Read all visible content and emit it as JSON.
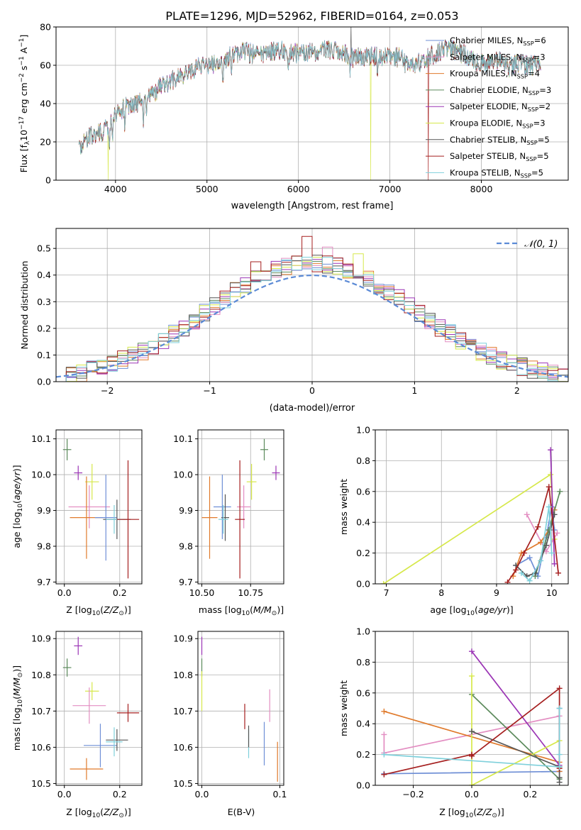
{
  "figure_title": "PLATE=1296, MJD=52962, FIBERID=0164, z=0.053",
  "colors": {
    "chabrier_miles": "#6f8fd6",
    "salpeter_miles": "#e38ec2",
    "kroupa_miles": "#e07a2c",
    "chabrier_elodie": "#5c8a5c",
    "salpeter_elodie": "#9b35b5",
    "kroupa_elodie": "#d6e84a",
    "chabrier_stelib": "#555555",
    "salpeter_stelib": "#a51f1f",
    "kroupa_stelib": "#7fd0db",
    "normal_curve": "#5b8ad6",
    "grid": "#b0b0b0"
  },
  "legend_entries": [
    {
      "label": "Chabrier MILES, N",
      "sub": "SSP",
      "tail": "=6",
      "color": "#6f8fd6"
    },
    {
      "label": "Salpeter MILES, N",
      "sub": "SSP",
      "tail": "=3",
      "color": "#e38ec2"
    },
    {
      "label": "Kroupa MILES, N",
      "sub": "SSP",
      "tail": "=4",
      "color": "#e07a2c"
    },
    {
      "label": "Chabrier ELODIE, N",
      "sub": "SSP",
      "tail": "=3",
      "color": "#5c8a5c"
    },
    {
      "label": "Salpeter ELODIE, N",
      "sub": "SSP",
      "tail": "=2",
      "color": "#9b35b5"
    },
    {
      "label": "Kroupa ELODIE, N",
      "sub": "SSP",
      "tail": "=3",
      "color": "#d6e84a"
    },
    {
      "label": "Chabrier STELIB, N",
      "sub": "SSP",
      "tail": "=5",
      "color": "#555555"
    },
    {
      "label": "Salpeter STELIB, N",
      "sub": "SSP",
      "tail": "=5",
      "color": "#a51f1f"
    },
    {
      "label": "Kroupa STELIB, N",
      "sub": "SSP",
      "tail": "=5",
      "color": "#7fd0db"
    }
  ],
  "chart_data": [
    {
      "id": "spectrum",
      "type": "line",
      "xlabel": "wavelength [Angstrom, rest frame]",
      "ylabel": "Flux [fλ10⁻¹⁷ erg cm⁻² s⁻¹ A⁻¹]",
      "xlim": [
        3350,
        8950
      ],
      "ylim": [
        0,
        80
      ],
      "xticks": [
        4000,
        5000,
        6000,
        7000,
        8000
      ],
      "yticks": [
        0,
        20,
        40,
        60,
        80
      ],
      "x_range_data": [
        3600,
        8650
      ],
      "continuum": [
        [
          3600,
          18
        ],
        [
          3700,
          22
        ],
        [
          3800,
          24
        ],
        [
          3900,
          27
        ],
        [
          4000,
          34
        ],
        [
          4100,
          38
        ],
        [
          4200,
          40
        ],
        [
          4300,
          41
        ],
        [
          4400,
          45
        ],
        [
          4500,
          49
        ],
        [
          4600,
          52
        ],
        [
          4700,
          54
        ],
        [
          4800,
          57
        ],
        [
          4900,
          59
        ],
        [
          5000,
          61
        ],
        [
          5100,
          60
        ],
        [
          5200,
          63
        ],
        [
          5300,
          66
        ],
        [
          5400,
          67
        ],
        [
          5500,
          66
        ],
        [
          5600,
          65
        ],
        [
          5700,
          67
        ],
        [
          5800,
          68
        ],
        [
          5900,
          67
        ],
        [
          6000,
          66
        ],
        [
          6100,
          67
        ],
        [
          6200,
          67
        ],
        [
          6300,
          68
        ],
        [
          6400,
          67
        ],
        [
          6500,
          66
        ],
        [
          6600,
          64
        ],
        [
          6700,
          64
        ],
        [
          6800,
          65
        ],
        [
          6900,
          64
        ],
        [
          7000,
          65
        ],
        [
          7100,
          64
        ],
        [
          7200,
          60
        ],
        [
          7300,
          61
        ],
        [
          7400,
          64
        ],
        [
          7500,
          66
        ],
        [
          7600,
          68
        ],
        [
          7700,
          68
        ],
        [
          7800,
          66
        ],
        [
          7900,
          63
        ],
        [
          8000,
          61
        ],
        [
          8100,
          61
        ],
        [
          8200,
          62
        ],
        [
          8300,
          59
        ],
        [
          8400,
          61
        ],
        [
          8500,
          60
        ],
        [
          8650,
          60
        ]
      ],
      "glitches": [
        {
          "x": 3920,
          "y": 0,
          "series": "kroupa_elodie"
        },
        {
          "x": 6790,
          "y": 0,
          "series": "kroupa_elodie"
        },
        {
          "x": 7420,
          "y": 0,
          "series": "salpeter_stelib"
        },
        {
          "x": 6575,
          "y": 82,
          "series": "chabrier_stelib"
        }
      ]
    },
    {
      "id": "residuals",
      "type": "step-histogram",
      "xlabel": "(data-model)/error",
      "ylabel": "Normed distribution",
      "xlim": [
        -2.5,
        2.5
      ],
      "ylim": [
        0,
        0.575
      ],
      "xticks": [
        -2,
        -1,
        0,
        1,
        2
      ],
      "xtick_labels": [
        "−2",
        "−1",
        "0",
        "1",
        "2"
      ],
      "yticks": [
        0,
        0.1,
        0.2,
        0.3,
        0.4,
        0.5
      ],
      "ytick_labels": [
        "0.0",
        "0.1",
        "0.2",
        "0.3",
        "0.4",
        "0.5"
      ],
      "bin_width": 0.1,
      "legend_label": "𝒩(0, 1)",
      "curve": "normal(0,1)",
      "spikes": [
        {
          "x": -0.05,
          "y": 0.545,
          "series": "salpeter_stelib"
        },
        {
          "x": 0.45,
          "y": 0.48,
          "series": "kroupa_elodie"
        },
        {
          "x": -0.55,
          "y": 0.45,
          "series": "salpeter_stelib"
        },
        {
          "x": 0.15,
          "y": 0.505,
          "series": "salpeter_miles"
        }
      ]
    },
    {
      "id": "age_vs_Z",
      "type": "errorbar",
      "xlabel": "Z [log₁₀(Z/Z⊙)]",
      "ylabel": "age  [log₁₀(age/yr)]",
      "xlim": [
        -0.03,
        0.28
      ],
      "ylim": [
        9.695,
        10.125
      ],
      "xticks": [
        0.0,
        0.2
      ],
      "xtick_labels": [
        "0.0",
        "0.2"
      ],
      "yticks": [
        9.7,
        9.8,
        9.9,
        10.0,
        10.1
      ],
      "ytick_labels": [
        "9.7",
        "9.8",
        "9.9",
        "10.0",
        "10.1"
      ],
      "points": [
        {
          "series": "chabrier_elodie",
          "x": 0.01,
          "xerr": 0.015,
          "y": 10.07,
          "yerr": 0.03
        },
        {
          "series": "salpeter_elodie",
          "x": 0.05,
          "xerr": 0.015,
          "y": 10.005,
          "yerr": 0.02
        },
        {
          "series": "kroupa_elodie",
          "x": 0.1,
          "xerr": 0.025,
          "y": 9.98,
          "yerr": 0.05
        },
        {
          "series": "salpeter_miles",
          "x": 0.09,
          "xerr": 0.075,
          "y": 9.91,
          "yerr": 0.06
        },
        {
          "series": "kroupa_miles",
          "x": 0.08,
          "xerr": 0.06,
          "y": 9.88,
          "yerr": 0.115
        },
        {
          "series": "chabrier_miles",
          "x": 0.15,
          "xerr": 0.04,
          "y": 9.88,
          "yerr": 0.12
        },
        {
          "series": "chabrier_stelib",
          "x": 0.19,
          "xerr": 0.05,
          "y": 9.875,
          "yerr": 0.055
        },
        {
          "series": "kroupa_stelib",
          "x": 0.18,
          "xerr": 0.03,
          "y": 9.875,
          "yerr": 0.04
        },
        {
          "series": "salpeter_stelib",
          "x": 0.23,
          "xerr": 0.04,
          "y": 9.875,
          "yerr": 0.165
        }
      ]
    },
    {
      "id": "age_vs_mass",
      "type": "errorbar",
      "xlabel": "mass [log₁₀(M/M⊙)]",
      "xlim": [
        10.48,
        10.92
      ],
      "ylim": [
        9.695,
        10.125
      ],
      "xticks": [
        10.5,
        10.75
      ],
      "xtick_labels": [
        "10.50",
        "10.75"
      ],
      "yticks": [
        9.7,
        9.8,
        9.9,
        10.0,
        10.1
      ],
      "ytick_labels": [
        "9.7",
        "9.8",
        "9.9",
        "10.0",
        "10.1"
      ],
      "points": [
        {
          "series": "chabrier_elodie",
          "x": 10.82,
          "xerr": 0.02,
          "y": 10.07,
          "yerr": 0.03
        },
        {
          "series": "salpeter_elodie",
          "x": 10.88,
          "xerr": 0.02,
          "y": 10.005,
          "yerr": 0.02
        },
        {
          "series": "kroupa_elodie",
          "x": 10.755,
          "xerr": 0.025,
          "y": 9.98,
          "yerr": 0.05
        },
        {
          "series": "salpeter_miles",
          "x": 10.715,
          "xerr": 0.035,
          "y": 9.91,
          "yerr": 0.06
        },
        {
          "series": "chabrier_miles",
          "x": 10.605,
          "xerr": 0.045,
          "y": 9.91,
          "yerr": 0.09
        },
        {
          "series": "kroupa_miles",
          "x": 10.54,
          "xerr": 0.04,
          "y": 9.88,
          "yerr": 0.115
        },
        {
          "series": "chabrier_stelib",
          "x": 10.62,
          "xerr": 0.02,
          "y": 9.88,
          "yerr": 0.065
        },
        {
          "series": "kroupa_stelib",
          "x": 10.61,
          "xerr": 0.025,
          "y": 9.875,
          "yerr": 0.04
        },
        {
          "series": "salpeter_stelib",
          "x": 10.695,
          "xerr": 0.025,
          "y": 9.875,
          "yerr": 0.165
        }
      ]
    },
    {
      "id": "mass_weight_vs_age",
      "type": "line",
      "xlabel": "age  [log₁₀(age/yr)]",
      "ylabel": "mass weight",
      "xlim": [
        6.8,
        10.3
      ],
      "ylim": [
        0,
        1.0
      ],
      "xticks": [
        7,
        8,
        9,
        10
      ],
      "yticks": [
        0,
        0.2,
        0.4,
        0.6,
        0.8,
        1.0
      ],
      "ytick_labels": [
        "0.0",
        "0.2",
        "0.4",
        "0.6",
        "0.8",
        "1.0"
      ],
      "series": [
        {
          "series": "kroupa_elodie",
          "x": [
            6.95,
            9.98,
            10.05
          ],
          "y": [
            0.0,
            0.71,
            0.29
          ]
        },
        {
          "series": "chabrier_miles",
          "x": [
            9.35,
            9.6,
            9.75,
            9.9,
            10.0,
            10.05
          ],
          "y": [
            0.12,
            0.17,
            0.05,
            0.3,
            0.5,
            0.35
          ]
        },
        {
          "series": "salpeter_miles",
          "x": [
            9.55,
            9.9,
            10.1
          ],
          "y": [
            0.45,
            0.21,
            0.33
          ]
        },
        {
          "series": "kroupa_miles",
          "x": [
            9.3,
            9.45,
            9.8,
            9.95,
            10.05
          ],
          "y": [
            0.05,
            0.2,
            0.27,
            0.35,
            0.48
          ]
        },
        {
          "series": "chabrier_elodie",
          "x": [
            9.7,
            9.95,
            10.15
          ],
          "y": [
            0.05,
            0.35,
            0.6
          ]
        },
        {
          "series": "salpeter_elodie",
          "x": [
            9.98,
            10.05
          ],
          "y": [
            0.87,
            0.13
          ]
        },
        {
          "series": "chabrier_stelib",
          "x": [
            9.35,
            9.55,
            9.7,
            9.9,
            10.05
          ],
          "y": [
            0.12,
            0.05,
            0.07,
            0.25,
            0.45
          ]
        },
        {
          "series": "salpeter_stelib",
          "x": [
            9.2,
            9.35,
            9.5,
            9.75,
            9.95,
            10.12
          ],
          "y": [
            0.01,
            0.09,
            0.2,
            0.37,
            0.63,
            0.07
          ]
        },
        {
          "series": "kroupa_stelib",
          "x": [
            9.45,
            9.6,
            9.8,
            9.95,
            10.0
          ],
          "y": [
            0.07,
            0.02,
            0.15,
            0.5,
            0.2
          ]
        }
      ]
    },
    {
      "id": "mass_vs_Z",
      "type": "errorbar",
      "xlabel": "Z [log₁₀(Z/Z⊙)]",
      "ylabel": "mass [log₁₀(M/M⊙)]",
      "xlim": [
        -0.03,
        0.28
      ],
      "ylim": [
        10.495,
        10.92
      ],
      "xticks": [
        0.0,
        0.2
      ],
      "xtick_labels": [
        "0.0",
        "0.2"
      ],
      "yticks": [
        10.5,
        10.6,
        10.7,
        10.8,
        10.9
      ],
      "ytick_labels": [
        "10.5",
        "10.6",
        "10.7",
        "10.8",
        "10.9"
      ],
      "points": [
        {
          "series": "chabrier_elodie",
          "x": 0.01,
          "xerr": 0.015,
          "y": 10.82,
          "yerr": 0.025
        },
        {
          "series": "salpeter_elodie",
          "x": 0.05,
          "xerr": 0.015,
          "y": 10.88,
          "yerr": 0.025
        },
        {
          "series": "kroupa_elodie",
          "x": 0.1,
          "xerr": 0.025,
          "y": 10.755,
          "yerr": 0.025
        },
        {
          "series": "salpeter_miles",
          "x": 0.09,
          "xerr": 0.06,
          "y": 10.715,
          "yerr": 0.05
        },
        {
          "series": "chabrier_miles",
          "x": 0.13,
          "xerr": 0.06,
          "y": 10.605,
          "yerr": 0.06
        },
        {
          "series": "kroupa_miles",
          "x": 0.08,
          "xerr": 0.06,
          "y": 10.54,
          "yerr": 0.03
        },
        {
          "series": "chabrier_stelib",
          "x": 0.19,
          "xerr": 0.04,
          "y": 10.62,
          "yerr": 0.03
        },
        {
          "series": "kroupa_stelib",
          "x": 0.18,
          "xerr": 0.03,
          "y": 10.615,
          "yerr": 0.04
        },
        {
          "series": "salpeter_stelib",
          "x": 0.23,
          "xerr": 0.04,
          "y": 10.695,
          "yerr": 0.025
        }
      ]
    },
    {
      "id": "mass_vs_ebv",
      "type": "errorbar",
      "xlabel": "E(B-V)",
      "xlim": [
        -0.005,
        0.105
      ],
      "ylim": [
        10.495,
        10.92
      ],
      "xticks": [
        0.0,
        0.1
      ],
      "xtick_labels": [
        "0.0",
        "0.1"
      ],
      "yticks": [
        10.5,
        10.6,
        10.7,
        10.8,
        10.9
      ],
      "ytick_labels": [
        "10.5",
        "10.6",
        "10.7",
        "10.8",
        "10.9"
      ],
      "points": [
        {
          "series": "salpeter_elodie",
          "x": 0.0,
          "xerr": 0,
          "y": 10.88,
          "yerr": 0.025
        },
        {
          "series": "chabrier_elodie",
          "x": 0.0,
          "xerr": 0,
          "y": 10.82,
          "yerr": 0.025
        },
        {
          "series": "kroupa_elodie",
          "x": 0.0,
          "xerr": 0,
          "y": 10.755,
          "yerr": 0.055
        },
        {
          "series": "salpeter_stelib",
          "x": 0.055,
          "xerr": 0,
          "y": 10.685,
          "yerr": 0.035
        },
        {
          "series": "kroupa_stelib",
          "x": 0.06,
          "xerr": 0,
          "y": 10.61,
          "yerr": 0.04
        },
        {
          "series": "chabrier_stelib",
          "x": 0.06,
          "xerr": 0,
          "y": 10.63,
          "yerr": 0.03
        },
        {
          "series": "chabrier_miles",
          "x": 0.08,
          "xerr": 0,
          "y": 10.61,
          "yerr": 0.06
        },
        {
          "series": "salpeter_miles",
          "x": 0.087,
          "xerr": 0,
          "y": 10.715,
          "yerr": 0.045
        },
        {
          "series": "kroupa_miles",
          "x": 0.097,
          "xerr": 0,
          "y": 10.56,
          "yerr": 0.055
        }
      ]
    },
    {
      "id": "mass_weight_vs_Z",
      "type": "line",
      "xlabel": "Z [log₁₀(Z/Z⊙)]",
      "ylabel": "mass weight",
      "xlim": [
        -0.33,
        0.33
      ],
      "ylim": [
        0,
        1.0
      ],
      "xticks": [
        -0.2,
        0.0,
        0.2
      ],
      "xtick_labels": [
        "−0.2",
        "0.0",
        "0.2"
      ],
      "yticks": [
        0,
        0.2,
        0.4,
        0.6,
        0.8,
        1.0
      ],
      "ytick_labels": [
        "0.0",
        "0.2",
        "0.4",
        "0.6",
        "0.8",
        "1.0"
      ],
      "series": [
        {
          "series": "chabrier_miles",
          "x": [
            -0.3,
            0.3,
            0.3
          ],
          "y": [
            0.075,
            0.09,
            0.5
          ]
        },
        {
          "series": "salpeter_miles",
          "x": [
            -0.3,
            -0.3,
            0.3
          ],
          "y": [
            0.33,
            0.21,
            0.45
          ]
        },
        {
          "series": "kroupa_miles",
          "x": [
            -0.3,
            0.3,
            0.3
          ],
          "y": [
            0.48,
            0.15,
            0.09
          ]
        },
        {
          "series": "chabrier_elodie",
          "x": [
            0.0,
            0.3
          ],
          "y": [
            0.59,
            0.04
          ]
        },
        {
          "series": "salpeter_elodie",
          "x": [
            0.0,
            0.3
          ],
          "y": [
            0.87,
            0.13
          ]
        },
        {
          "series": "kroupa_elodie",
          "x": [
            0.0,
            0.0,
            0.3
          ],
          "y": [
            0.71,
            0.0,
            0.29
          ]
        },
        {
          "series": "chabrier_stelib",
          "x": [
            0.0,
            0.3,
            0.3,
            0.3
          ],
          "y": [
            0.35,
            0.12,
            0.05,
            0.02
          ]
        },
        {
          "series": "salpeter_stelib",
          "x": [
            -0.3,
            0.0,
            0.0,
            0.3,
            0.3
          ],
          "y": [
            0.07,
            0.2,
            0.19,
            0.63,
            0.11
          ]
        },
        {
          "series": "kroupa_stelib",
          "x": [
            -0.3,
            0.3,
            0.3,
            0.3
          ],
          "y": [
            0.2,
            0.12,
            0.5,
            0.2
          ]
        }
      ]
    }
  ]
}
